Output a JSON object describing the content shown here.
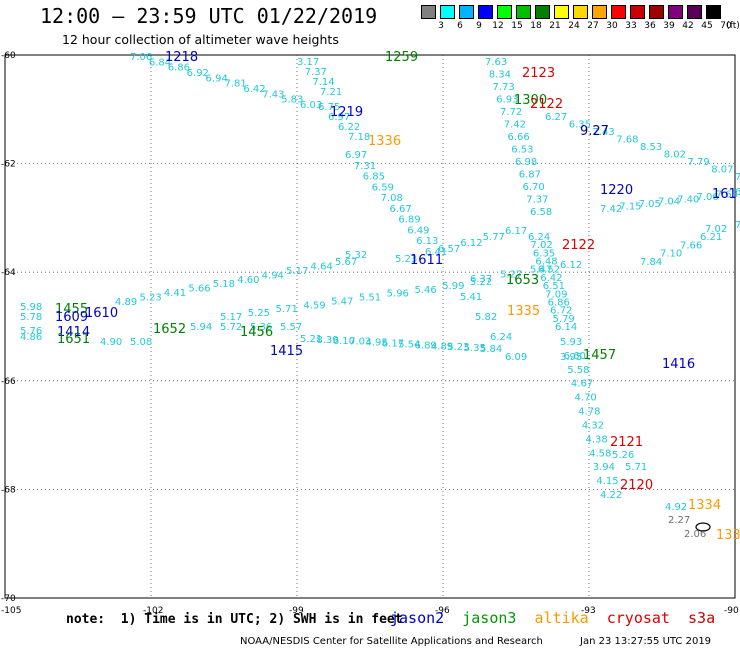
{
  "header": {
    "title": "12:00 – 23:59 UTC 01/22/2019",
    "subtitle": "12 hour collection of altimeter wave heights"
  },
  "legend": {
    "unit": "(ft)",
    "bins": [
      {
        "label": "3",
        "color": "#808080"
      },
      {
        "label": "6",
        "color": "#00ffff"
      },
      {
        "label": "9",
        "color": "#00b4ff"
      },
      {
        "label": "12",
        "color": "#0000ff"
      },
      {
        "label": "15",
        "color": "#00ff00"
      },
      {
        "label": "18",
        "color": "#00c000"
      },
      {
        "label": "21",
        "color": "#008000"
      },
      {
        "label": "24",
        "color": "#ffff00"
      },
      {
        "label": "27",
        "color": "#ffd700"
      },
      {
        "label": "30",
        "color": "#ffa500"
      },
      {
        "label": "33",
        "color": "#ff0000"
      },
      {
        "label": "36",
        "color": "#c80000"
      },
      {
        "label": "39",
        "color": "#a00000"
      },
      {
        "label": "42",
        "color": "#800080"
      },
      {
        "label": "45",
        "color": "#5a005a"
      },
      {
        "label": "70",
        "color": "#000000"
      }
    ]
  },
  "axes": {
    "lon_ticks": [
      "-105",
      "-102",
      "-99",
      "-96",
      "-93",
      "-90"
    ],
    "lat_ticks": [
      "-60",
      "-62",
      "-64",
      "-66",
      "-68",
      "-70"
    ]
  },
  "passes": {
    "cyan_values": [
      "7.06",
      "6.84",
      "6.86",
      "6.92",
      "6.94",
      "7.81",
      "6.42",
      "7.43",
      "5.83",
      "6.03",
      "6.75",
      "6.97",
      "6.22",
      "7.18",
      "6.97",
      "7.31",
      "6.85",
      "6.59",
      "7.08",
      "6.67",
      "6.89",
      "6.49",
      "6.13",
      "6.41",
      "6.57",
      "6.12",
      "5.77",
      "6.17",
      "6.24",
      "7.02",
      "6.35",
      "6.48",
      "6.52",
      "6.42",
      "6.51",
      "7.09",
      "6.86",
      "6.72",
      "5.79",
      "6.14",
      "5.93",
      "6.60",
      "5.58",
      "4.67",
      "4.70",
      "4.78",
      "4.32",
      "4.38",
      "4.58",
      "3.94",
      "4.15",
      "4.22",
      "4.92",
      "3.17",
      "7.37",
      "7.14",
      "7.21",
      "7.63",
      "8.34",
      "7.73",
      "6.93",
      "7.72",
      "7.42",
      "6.66",
      "6.53",
      "6.98",
      "6.87",
      "6.70",
      "7.37",
      "6.58",
      "6.27",
      "6.35",
      "7.43",
      "7.68",
      "8.53",
      "8.02",
      "7.79",
      "8.07",
      "7.65",
      "7.42",
      "7.15",
      "7.05",
      "7.04",
      "7.40",
      "7.06",
      "7.63",
      "6.89",
      "7.02",
      "7.47",
      "7.84",
      "7.10",
      "7.66",
      "6.21",
      "6.37",
      "5.27",
      "5.47",
      "6.12",
      "5.98",
      "5.78",
      "5.76",
      "4.86",
      "4.89",
      "5.23",
      "4.41",
      "5.66",
      "5.18",
      "4.60",
      "4.94",
      "5.17",
      "4.64",
      "5.67",
      "5.32",
      "5.23",
      "5.17",
      "5.25",
      "5.71",
      "4.59",
      "5.47",
      "5.51",
      "5.96",
      "5.46",
      "5.99",
      "5.22",
      "5.41",
      "5.82",
      "6.24",
      "6.09",
      "5.94",
      "5.72",
      "5.36",
      "5.57",
      "5.21",
      "8.39",
      "6.10",
      "7.03",
      "4.95",
      "6.17",
      "5.54",
      "6.89",
      "4.89",
      "5.23",
      "5.35",
      "5.84",
      "4.90",
      "5.08",
      "5.26",
      "5.71",
      "3.95",
      "4.63",
      "4.72",
      "7.18",
      "3.26",
      "5.61"
    ],
    "gray_values": [
      "2.27",
      "2.06"
    ]
  },
  "pass_labels": [
    {
      "text": "1218",
      "color": "#0000cc"
    },
    {
      "text": "1259",
      "color": "#008000"
    },
    {
      "text": "2123",
      "color": "#dd0000"
    },
    {
      "text": "1300",
      "color": "#008000"
    },
    {
      "text": "2122",
      "color": "#dd0000"
    },
    {
      "text": "1219",
      "color": "#0000cc"
    },
    {
      "text": "1336",
      "color": "#ff9900"
    },
    {
      "text": "1220",
      "color": "#0000cc"
    },
    {
      "text": "161",
      "color": "#0000cc"
    },
    {
      "text": "2122",
      "color": "#dd0000"
    },
    {
      "text": "1611",
      "color": "#0000cc"
    },
    {
      "text": "1653",
      "color": "#008000"
    },
    {
      "text": "1335",
      "color": "#ff9900"
    },
    {
      "text": "1455",
      "color": "#008000"
    },
    {
      "text": "1609",
      "color": "#0000cc"
    },
    {
      "text": "1610",
      "color": "#0000cc"
    },
    {
      "text": "1652",
      "color": "#008000"
    },
    {
      "text": "1456",
      "color": "#008000"
    },
    {
      "text": "1414",
      "color": "#0000cc"
    },
    {
      "text": "1651",
      "color": "#008000"
    },
    {
      "text": "1415",
      "color": "#0000cc"
    },
    {
      "text": "1457",
      "color": "#008000"
    },
    {
      "text": "1416",
      "color": "#0000cc"
    },
    {
      "text": "2121",
      "color": "#dd0000"
    },
    {
      "text": "2120",
      "color": "#dd0000"
    },
    {
      "text": "1334",
      "color": "#ff9900"
    },
    {
      "text": "133",
      "color": "#ff9900"
    },
    {
      "text": "9.27",
      "color": "#000080"
    }
  ],
  "footer": {
    "notes": "note:  1) Time is in UTC; 2) SWH is in feet",
    "satellites": [
      {
        "name": "jason2",
        "color": "#0000cc"
      },
      {
        "name": "jason3",
        "color": "#009900"
      },
      {
        "name": "altika",
        "color": "#ff9900"
      },
      {
        "name": "cryosat",
        "color": "#dd0000"
      },
      {
        "name": "s3a",
        "color": "#cc0000"
      }
    ],
    "credit": "NOAA/NESDIS Center for Satellite Applications and Research",
    "stamp": "Jan 23 13:27:55 UTC 2019"
  }
}
